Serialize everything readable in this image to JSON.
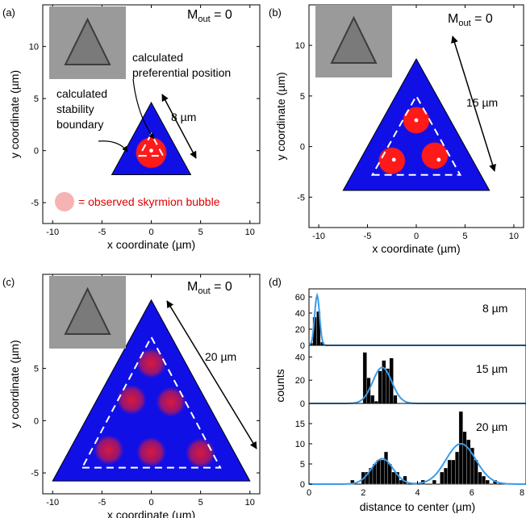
{
  "colors": {
    "triangle_fill": "#1010e6",
    "skyrmion": "#ff1a1a",
    "legend_bubble": "#f6b3b3",
    "legend_text": "#e00000",
    "fit_curve": "#3b9be8",
    "bar": "#000000",
    "inset_bg": "#9a9a9a"
  },
  "panels": {
    "a": {
      "label": "(a)",
      "mout_main": "M",
      "mout_sub": "out",
      "mout_value": " = 0",
      "size_label": "8 µm",
      "annot_pref_1": "calculated",
      "annot_pref_2": "preferential position",
      "annot_stab_1": "calculated",
      "annot_stab_2": "stability",
      "annot_stab_3": "boundary",
      "legend_text": "= observed skyrmion bubble"
    },
    "b": {
      "label": "(b)",
      "mout_main": "M",
      "mout_sub": "out",
      "mout_value": " = 0",
      "size_label": "15 µm"
    },
    "c": {
      "label": "(c)",
      "mout_main": "M",
      "mout_sub": "out",
      "mout_value": " = 0",
      "size_label": "20 µm"
    },
    "d": {
      "label": "(d)",
      "size_labels": [
        "8 µm",
        "15 µm",
        "20 µm"
      ]
    }
  },
  "chart_data": [
    {
      "panel": "a",
      "type": "scatter",
      "xlabel": "x coordinate (µm)",
      "ylabel": "y coordinate (µm)",
      "xlim": [
        -11,
        11
      ],
      "ylim": [
        -7,
        14
      ],
      "xticks": [
        -10,
        -5,
        0,
        5,
        10
      ],
      "yticks": [
        -5,
        0,
        5,
        10
      ],
      "triangle_side_um": 8,
      "stability_boundary": [
        [
          -1.2,
          -0.5
        ],
        [
          1.2,
          -0.5
        ],
        [
          0,
          1.6
        ]
      ],
      "preferential_positions": [
        [
          0,
          0
        ]
      ],
      "observed_bubbles": [
        [
          0,
          -0.2
        ]
      ],
      "bubble_radius_um": 1.6
    },
    {
      "panel": "b",
      "type": "scatter",
      "xlabel": "x coordinate (µm)",
      "ylabel": "y coordinate (µm)",
      "xlim": [
        -11,
        11
      ],
      "ylim": [
        -8,
        14
      ],
      "xticks": [
        -10,
        -5,
        0,
        5,
        10
      ],
      "yticks": [
        -5,
        0,
        5,
        10
      ],
      "triangle_side_um": 15,
      "stability_boundary": [
        [
          -4.5,
          -2.8
        ],
        [
          4.5,
          -2.8
        ],
        [
          0,
          5
        ]
      ],
      "preferential_positions": [
        [
          0,
          2.6
        ],
        [
          -2.3,
          -1.3
        ],
        [
          2.3,
          -1.3
        ]
      ],
      "observed_bubbles": [
        [
          0,
          2.6
        ],
        [
          -2.5,
          -1.4
        ],
        [
          1.9,
          -0.9
        ]
      ],
      "bubble_radius_um": 1.4
    },
    {
      "panel": "c",
      "type": "scatter",
      "xlabel": "x coordinate (µm)",
      "ylabel": "y coordinate (µm)",
      "xlim": [
        -11,
        11
      ],
      "ylim": [
        -7,
        14
      ],
      "xticks": [
        -10,
        -5,
        0,
        5,
        10
      ],
      "yticks": [
        -5,
        0,
        5
      ],
      "triangle_side_um": 20,
      "stability_boundary": [
        [
          -7,
          -4.5
        ],
        [
          7,
          -4.5
        ],
        [
          0,
          8
        ]
      ],
      "observed_bubbles": [
        [
          0,
          5.5
        ],
        [
          -2,
          2
        ],
        [
          2,
          1.8
        ],
        [
          -4.3,
          -2.8
        ],
        [
          0,
          -3
        ],
        [
          5,
          -3.1
        ]
      ],
      "bubble_radius_um": 1.5
    },
    {
      "panel": "d",
      "type": "bar",
      "xlabel": "distance to center (µm)",
      "ylabel": "counts",
      "xlim": [
        0,
        8
      ],
      "xticks": [
        0,
        2,
        4,
        6,
        8
      ],
      "subplots": [
        {
          "name": "8 µm",
          "ylim": [
            0,
            70
          ],
          "yticks": [
            0,
            20,
            40,
            60
          ],
          "bin_width": 0.14,
          "bars": [
            [
              0.07,
              3
            ],
            [
              0.21,
              35
            ],
            [
              0.35,
              42
            ],
            [
              0.49,
              4
            ]
          ],
          "fit": {
            "mean": 0.3,
            "sigma": 0.09,
            "peak": 62
          }
        },
        {
          "name": "15 µm",
          "ylim": [
            0,
            50
          ],
          "yticks": [
            0,
            20,
            40
          ],
          "bin_width": 0.14,
          "bars": [
            [
              2.06,
              44
            ],
            [
              2.2,
              22
            ],
            [
              2.34,
              7
            ],
            [
              2.48,
              2
            ],
            [
              2.62,
              28
            ],
            [
              2.76,
              37
            ],
            [
              2.9,
              30
            ],
            [
              3.04,
              39
            ],
            [
              3.18,
              7
            ]
          ],
          "fit": {
            "mean": 2.7,
            "sigma": 0.35,
            "peak": 31
          }
        },
        {
          "name": "20 µm",
          "ylim": [
            0,
            20
          ],
          "yticks": [
            0,
            5,
            10,
            15
          ],
          "bin_width": 0.14,
          "bars": [
            [
              1.6,
              1
            ],
            [
              2.0,
              3
            ],
            [
              2.14,
              3
            ],
            [
              2.28,
              4
            ],
            [
              2.42,
              5
            ],
            [
              2.56,
              6
            ],
            [
              2.7,
              6
            ],
            [
              2.84,
              8
            ],
            [
              2.98,
              5
            ],
            [
              3.12,
              3
            ],
            [
              3.26,
              3
            ],
            [
              3.4,
              1
            ],
            [
              3.54,
              2
            ],
            [
              4.2,
              1
            ],
            [
              4.62,
              1
            ],
            [
              4.9,
              3
            ],
            [
              5.04,
              4
            ],
            [
              5.18,
              6
            ],
            [
              5.32,
              6
            ],
            [
              5.46,
              8
            ],
            [
              5.6,
              18
            ],
            [
              5.74,
              13
            ],
            [
              5.88,
              11
            ],
            [
              6.02,
              9
            ],
            [
              6.16,
              6
            ],
            [
              6.3,
              3
            ],
            [
              6.44,
              2
            ],
            [
              6.58,
              1
            ],
            [
              6.86,
              1
            ]
          ],
          "fit": [
            {
              "mean": 2.7,
              "sigma": 0.4,
              "peak": 6.3
            },
            {
              "mean": 5.6,
              "sigma": 0.55,
              "peak": 10
            }
          ]
        }
      ]
    }
  ]
}
